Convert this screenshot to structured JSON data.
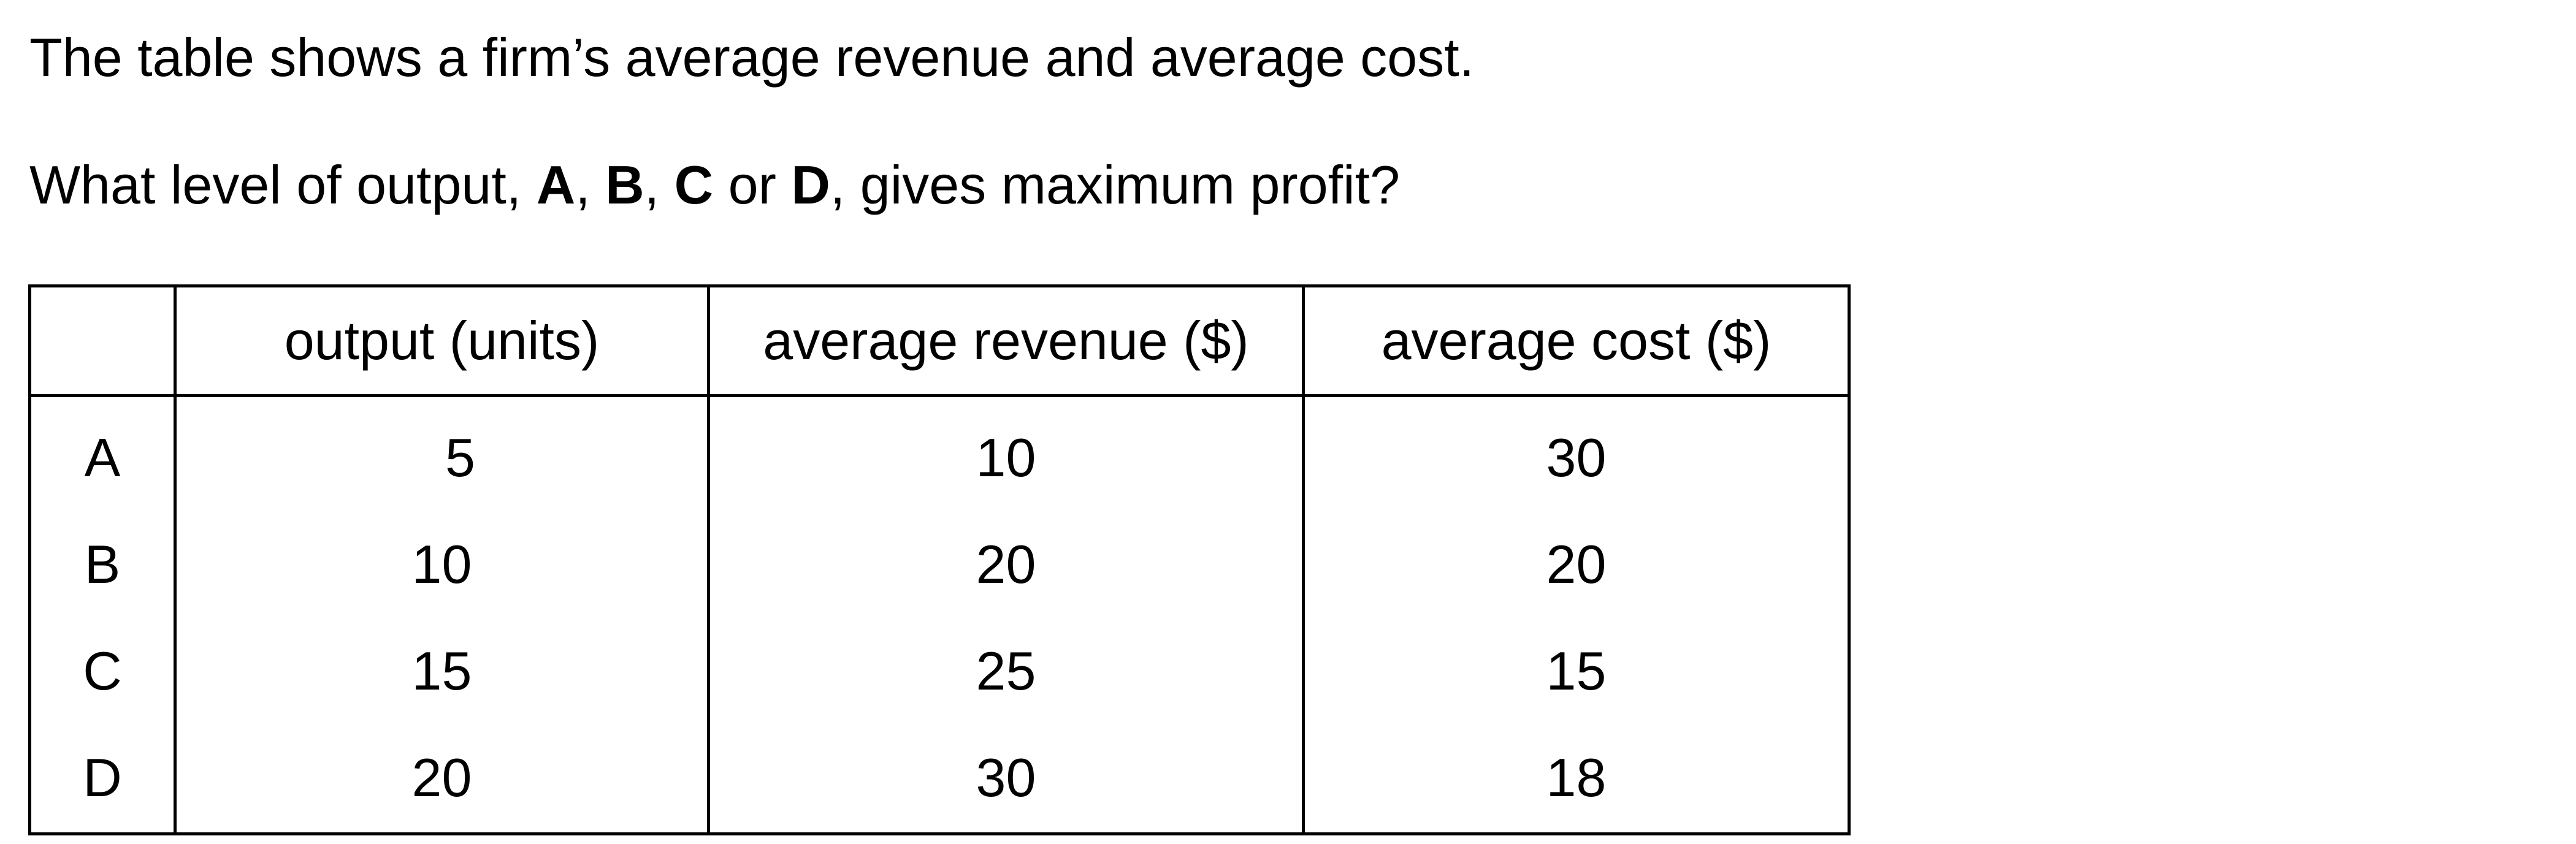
{
  "intro": "The table shows a firm’s average revenue and average cost.",
  "question": {
    "prefix": "What level of output, ",
    "opt_a": "A",
    "sep1": ", ",
    "opt_b": "B",
    "sep2": ", ",
    "opt_c": "C",
    "sep3": " or ",
    "opt_d": "D",
    "suffix": ", gives maximum profit?"
  },
  "table": {
    "headers": [
      "",
      "output (units)",
      "average revenue ($)",
      "average cost ($)"
    ],
    "rows": [
      {
        "label": "A",
        "output": "5",
        "avg_revenue": "10",
        "avg_cost": "30"
      },
      {
        "label": "B",
        "output": "10",
        "avg_revenue": "20",
        "avg_cost": "20"
      },
      {
        "label": "C",
        "output": "15",
        "avg_revenue": "25",
        "avg_cost": "15"
      },
      {
        "label": "D",
        "output": "20",
        "avg_revenue": "30",
        "avg_cost": "18"
      }
    ]
  }
}
